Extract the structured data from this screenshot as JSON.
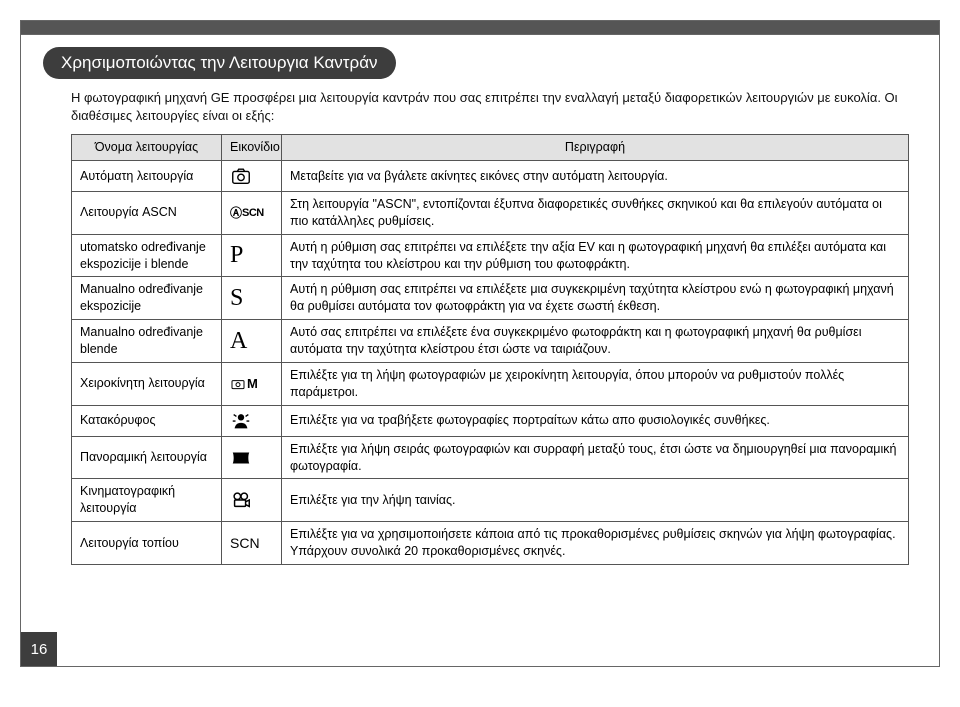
{
  "page_number": "16",
  "title": "Χρησιμοποιώντας την Λειτουργια Καντράν",
  "intro": "Η φωτογραφική μηχανή GE προσφέρει μια λειτουργία καντράν που σας επιτρέπει την εναλλαγή μεταξύ διαφορετικών λειτουργιών με ευκολία. Οι διαθέσιμες λειτουργίες είναι οι εξής:",
  "headers": {
    "name": "Όνομα λειτουργίας",
    "icon": "Εικονίδιο",
    "desc": "Περιγραφή"
  },
  "rows": [
    {
      "name": "Αυτόματη λειτουργία",
      "icon_type": "camera",
      "desc": "Μεταβείτε για να βγάλετε ακίνητες εικόνες στην αυτόματη λειτουργία."
    },
    {
      "name": "Λειτουργία ASCN",
      "icon_type": "ascn",
      "desc": "Στη λειτουργία \"ASCN\", εντοπίζονται έξυπνα διαφορετικές συνθήκες σκηνικού και θα επιλεγούν αυτόματα οι πιο κατάλληλες ρυθμίσεις."
    },
    {
      "name": "utomatsko određivanje ekspozicije i blende",
      "icon_type": "letter",
      "icon_value": "P",
      "desc": "Αυτή η ρύθμιση σας επιτρέπει να επιλέξετε την αξία EV και η φωτογραφική μηχανή θα επιλέξει αυτόματα και την ταχύτητα του κλείστρου και την ρύθμιση του φωτοφράκτη."
    },
    {
      "name": "Manualno određivanje ekspozicije",
      "icon_type": "letter",
      "icon_value": "S",
      "desc": "Αυτή η ρύθμιση σας επιτρέπει να επιλέξετε μια συγκεκριμένη ταχύτητα κλείστρου ενώ η φωτογραφική μηχανή θα ρυθμίσει αυτόματα τον φωτοφράκτη για να έχετε σωστή έκθεση."
    },
    {
      "name": "Manualno određivanje blende",
      "icon_type": "letter",
      "icon_value": "A",
      "desc": "Αυτό σας επιτρέπει να επιλέξετε ένα συγκεκριμένο φωτοφράκτη και η φωτογραφική μηχανή θα ρυθμίσει αυτόματα την ταχύτητα κλείστρου έτσι ώστε να ταιριάζουν."
    },
    {
      "name": "Χειροκίνητη λειτουργία",
      "icon_type": "manual",
      "desc": "Επιλέξτε για τη λήψη φωτογραφιών με χειροκίνητη λειτουργία, όπου μπορούν να ρυθμιστούν πολλές παράμετροι."
    },
    {
      "name": "Κατακόρυφος",
      "icon_type": "portrait",
      "desc": "Επιλέξτε για να τραβήξετε φωτογραφίες πορτραίτων κάτω απο φυσιολογικές συνθήκες."
    },
    {
      "name": "Πανοραμική λειτουργία",
      "icon_type": "panorama",
      "desc": "Επιλέξτε για λήψη σειράς φωτογραφιών και συρραφή μεταξύ τους, έτσι ώστε να δημιουργηθεί μια πανοραμική φωτογραφία."
    },
    {
      "name": "Κινηματογραφική λειτουργία",
      "icon_type": "movie",
      "desc": "Επιλέξτε για την λήψη ταινίας."
    },
    {
      "name": "Λειτουργία τοπίου",
      "icon_type": "text",
      "icon_value": "SCN",
      "desc": "Επιλέξτε για να χρησιμοποιήσετε κάποια από τις προκαθορισμένες ρυθμίσεις σκηνών για λήψη φωτογραφίας. Υπάρχουν συνολικά 20 προκαθορισμένες σκηνές."
    }
  ]
}
